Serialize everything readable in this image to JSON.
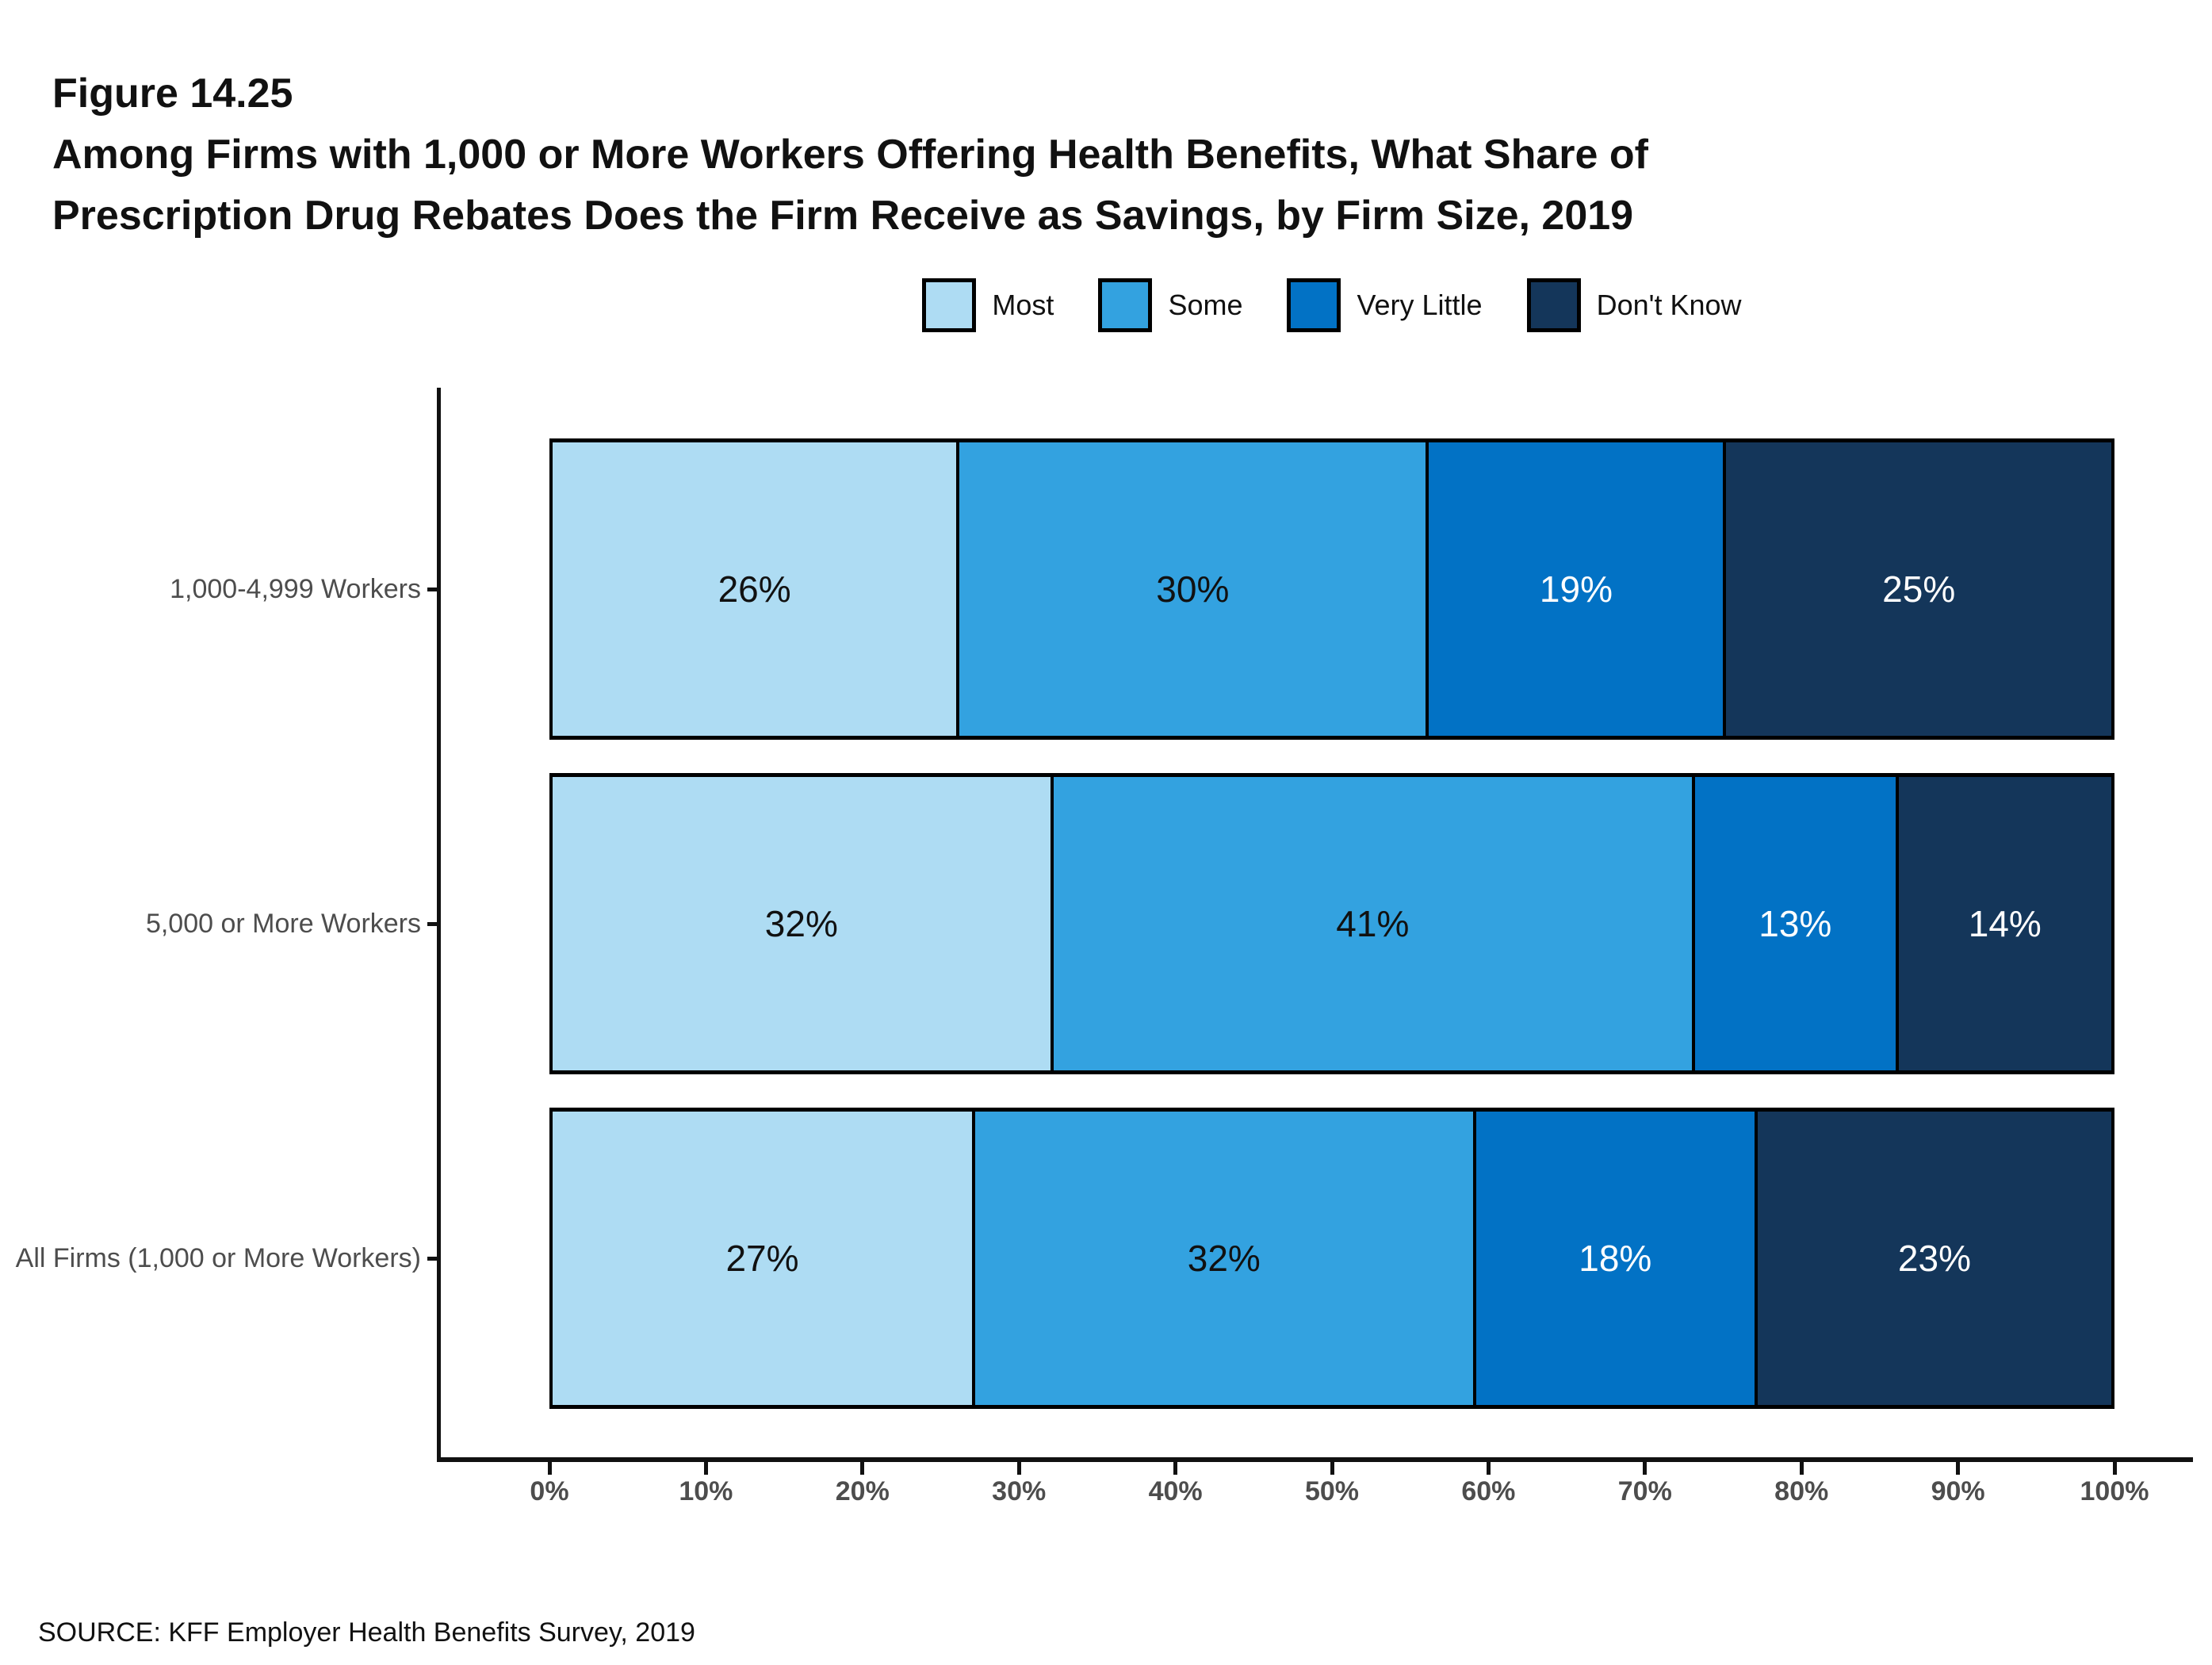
{
  "figure": {
    "label": "Figure 14.25",
    "title_line1": "Among Firms with 1,000 or More Workers Offering Health Benefits, What Share of",
    "title_line2": "Prescription Drug Rebates Does the Firm Receive as Savings, by Firm Size, 2019"
  },
  "chart_data": {
    "type": "bar",
    "orientation": "horizontal",
    "stacked": true,
    "title": "Among Firms with 1,000 or More Workers Offering Health Benefits, What Share of Prescription Drug Rebates Does the Firm Receive as Savings, by Firm Size, 2019",
    "categories": [
      "1,000-4,999 Workers",
      "5,000 or More Workers",
      "All Firms (1,000 or More Workers)"
    ],
    "series": [
      {
        "name": "Most",
        "color": "#AEDCF3",
        "values": [
          26,
          32,
          27
        ]
      },
      {
        "name": "Some",
        "color": "#33A2E0",
        "values": [
          30,
          41,
          32
        ]
      },
      {
        "name": "Very Little",
        "color": "#0272C5",
        "values": [
          19,
          13,
          18
        ]
      },
      {
        "name": "Don't Know",
        "color": "#14365A",
        "values": [
          25,
          14,
          23
        ]
      }
    ],
    "value_suffix": "%",
    "xlim": [
      0,
      100
    ],
    "x_ticks": [
      "0%",
      "10%",
      "20%",
      "30%",
      "40%",
      "50%",
      "60%",
      "70%",
      "80%",
      "90%",
      "100%"
    ],
    "grid": false,
    "legend_position": "top",
    "axis_color": "#111111",
    "label_color_dark": "#111111",
    "label_color_light": "#ffffff"
  },
  "source": "SOURCE: KFF Employer Health Benefits Survey, 2019"
}
